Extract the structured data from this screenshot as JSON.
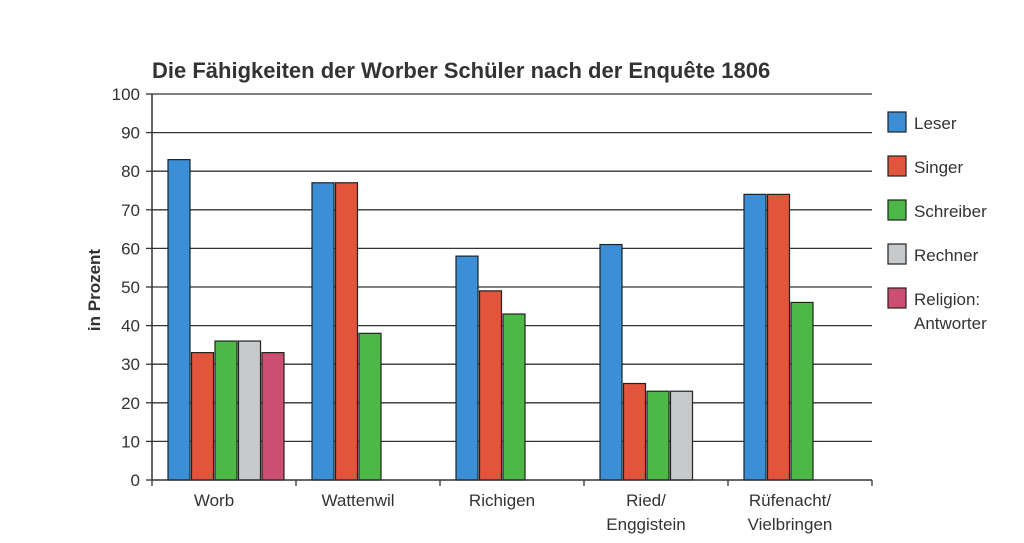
{
  "chart_data": {
    "type": "bar",
    "title": "Die Fähigkeiten der Worber Schüler nach der Enquête 1806",
    "ylabel": "in Prozent",
    "xlabel": "",
    "ylim": [
      0,
      100
    ],
    "yticks": [
      "0",
      "10",
      "20",
      "30",
      "40",
      "50",
      "60",
      "70",
      "80",
      "90",
      "100"
    ],
    "grid": true,
    "legend_position": "right",
    "categories": [
      [
        "Worb"
      ],
      [
        "Wattenwil"
      ],
      [
        "Richigen"
      ],
      [
        "Ried/",
        "Enggistein"
      ],
      [
        "Rüfenacht/",
        "Vielbringen"
      ]
    ],
    "series": [
      {
        "name": "Leser",
        "legend_lines": [
          "Leser"
        ],
        "color": "#3b8fd6",
        "values": [
          83,
          77,
          58,
          61,
          74
        ]
      },
      {
        "name": "Singer",
        "legend_lines": [
          "Singer"
        ],
        "color": "#e0553c",
        "values": [
          33,
          77,
          49,
          25,
          74
        ]
      },
      {
        "name": "Schreiber",
        "legend_lines": [
          "Schreiber"
        ],
        "color": "#4cb848",
        "values": [
          36,
          38,
          43,
          23,
          46
        ]
      },
      {
        "name": "Rechner",
        "legend_lines": [
          "Rechner"
        ],
        "color": "#c8c9cb",
        "values": [
          36,
          null,
          null,
          23,
          null
        ]
      },
      {
        "name": "Religion: Antworter",
        "legend_lines": [
          "Religion:",
          "Antworter"
        ],
        "color": "#cc4f72",
        "values": [
          33,
          null,
          null,
          null,
          null
        ]
      }
    ]
  }
}
